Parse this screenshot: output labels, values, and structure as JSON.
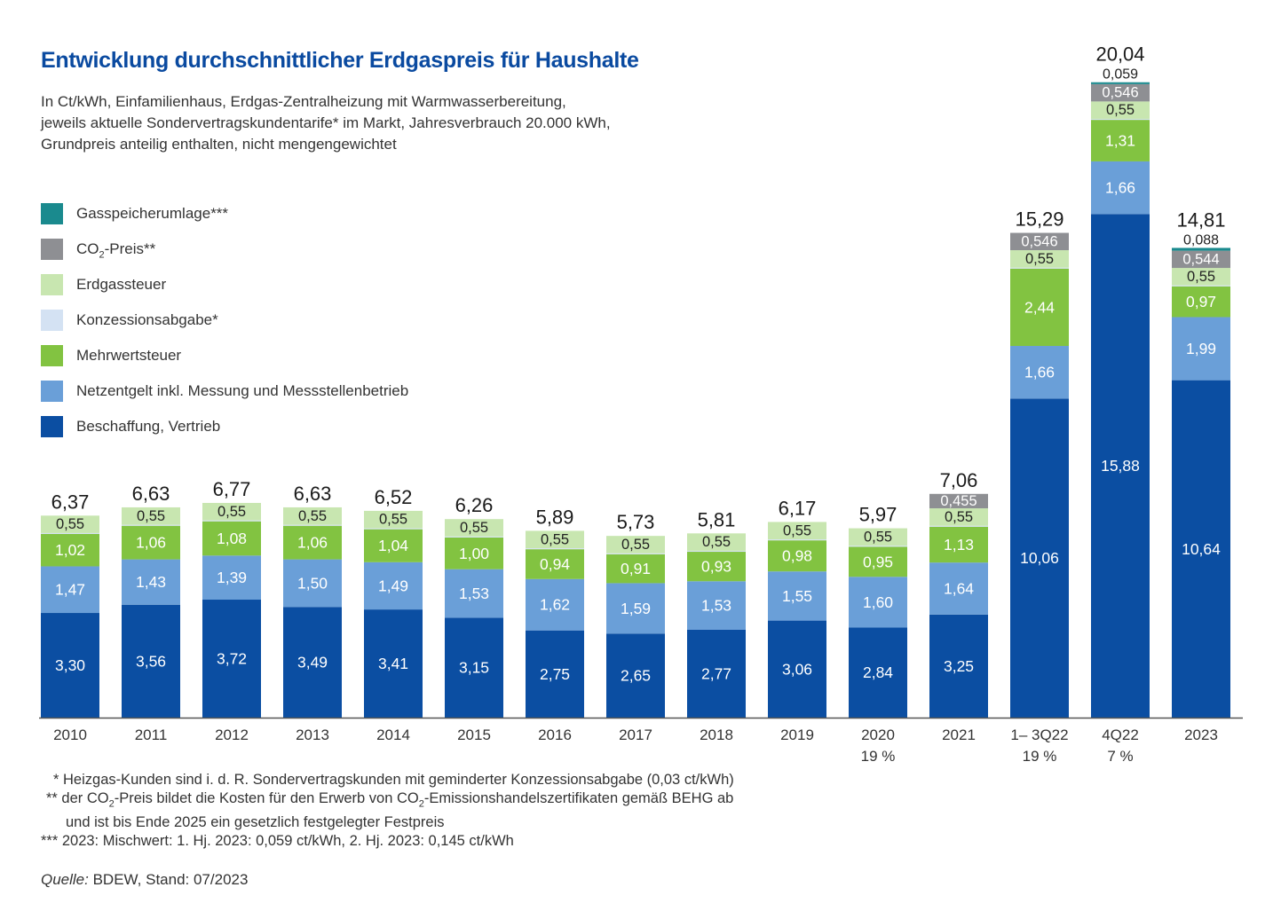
{
  "title": "Entwicklung durchschnittlicher Erdgaspreis für Haushalte",
  "subtitle_lines": [
    "In Ct/kWh, Einfamilienhaus, Erdgas-Zentralheizung mit Warmwasserbereitung,",
    "jeweils aktuelle Sondervertragskundentarife* im Markt, Jahresverbrauch 20.000 kWh,",
    "Grundpreis anteilig enthalten, nicht mengengewichtet"
  ],
  "legend": [
    {
      "label": "Gasspeicherumlage***",
      "color": "#1a8a8e"
    },
    {
      "label_pre": "CO",
      "label_sub": "2",
      "label_post": "-Preis**",
      "color": "#8e8f93"
    },
    {
      "label": "Erdgassteuer",
      "color": "#c8e6b0"
    },
    {
      "label": "Konzessionsabgabe*",
      "color": "#d4e2f3"
    },
    {
      "label": "Mehrwertsteuer",
      "color": "#82c341"
    },
    {
      "label": "Netzentgelt inkl. Messung und Messstellenbetrieb",
      "color": "#6a9fd8"
    },
    {
      "label": "Beschaffung, Vertrieb",
      "color": "#0b4ea2"
    }
  ],
  "chart_data": {
    "type": "bar",
    "stacked": true,
    "unit": "Ct/kWh",
    "categories": [
      "2010",
      "2011",
      "2012",
      "2013",
      "2014",
      "2015",
      "2016",
      "2017",
      "2018",
      "2019",
      "2020",
      "2021",
      "1– 3Q22",
      "4Q22",
      "2023"
    ],
    "category_sublabels": [
      "",
      "",
      "",
      "",
      "",
      "",
      "",
      "",
      "",
      "",
      "19 %",
      "",
      "19 %",
      "7 %",
      ""
    ],
    "totals": [
      "6,37",
      "6,63",
      "6,77",
      "6,63",
      "6,52",
      "6,26",
      "5,89",
      "5,73",
      "5,81",
      "6,17",
      "5,97",
      "7,06",
      "15,29",
      "20,04",
      "14,81"
    ],
    "series": [
      {
        "name": "Beschaffung, Vertrieb",
        "color": "#0b4ea2",
        "label_color": "#ffffff",
        "values": [
          3.3,
          3.56,
          3.72,
          3.49,
          3.41,
          3.15,
          2.75,
          2.65,
          2.77,
          3.06,
          2.84,
          3.25,
          10.06,
          15.88,
          10.64
        ],
        "labels": [
          "3,30",
          "3,56",
          "3,72",
          "3,49",
          "3,41",
          "3,15",
          "2,75",
          "2,65",
          "2,77",
          "3,06",
          "2,84",
          "3,25",
          "10,06",
          "15,88",
          "10,64"
        ]
      },
      {
        "name": "Netzentgelt inkl. Messung und Messstellenbetrieb",
        "color": "#6a9fd8",
        "label_color": "#ffffff",
        "values": [
          1.47,
          1.43,
          1.39,
          1.5,
          1.49,
          1.53,
          1.62,
          1.59,
          1.53,
          1.55,
          1.6,
          1.64,
          1.66,
          1.66,
          1.99
        ],
        "labels": [
          "1,47",
          "1,43",
          "1,39",
          "1,50",
          "1,49",
          "1,53",
          "1,62",
          "1,59",
          "1,53",
          "1,55",
          "1,60",
          "1,64",
          "1,66",
          "1,66",
          "1,99"
        ]
      },
      {
        "name": "Mehrwertsteuer",
        "color": "#82c341",
        "label_color": "#ffffff",
        "values": [
          1.02,
          1.06,
          1.08,
          1.06,
          1.04,
          1.0,
          0.94,
          0.91,
          0.93,
          0.98,
          0.95,
          1.13,
          2.44,
          1.31,
          0.97
        ],
        "labels": [
          "1,02",
          "1,06",
          "1,08",
          "1,06",
          "1,04",
          "1,00",
          "0,94",
          "0,91",
          "0,93",
          "0,98",
          "0,95",
          "1,13",
          "2,44",
          "1,31",
          "0,97"
        ]
      },
      {
        "name": "Konzessionsabgabe*",
        "color": "#d4e2f3",
        "label_color": "#222222",
        "values": [
          0.03,
          0.03,
          0.03,
          0.03,
          0.03,
          0.03,
          0.03,
          0.03,
          0.03,
          0.03,
          0.03,
          0.03,
          0.03,
          0.03,
          0.03
        ],
        "labels": [
          "",
          "",
          "",
          "",
          "",
          "",
          "",
          "",
          "",
          "",
          "",
          "",
          "",
          "",
          ""
        ]
      },
      {
        "name": "Erdgassteuer",
        "color": "#c8e6b0",
        "label_color": "#222222",
        "values": [
          0.55,
          0.55,
          0.55,
          0.55,
          0.55,
          0.55,
          0.55,
          0.55,
          0.55,
          0.55,
          0.55,
          0.55,
          0.55,
          0.55,
          0.55
        ],
        "labels": [
          "0,55",
          "0,55",
          "0,55",
          "0,55",
          "0,55",
          "0,55",
          "0,55",
          "0,55",
          "0,55",
          "0,55",
          "0,55",
          "0,55",
          "0,55",
          "0,55",
          "0,55"
        ]
      },
      {
        "name": "CO2-Preis**",
        "color": "#8e8f93",
        "label_color": "#ffffff",
        "values": [
          0,
          0,
          0,
          0,
          0,
          0,
          0,
          0,
          0,
          0,
          0,
          0.455,
          0.546,
          0.546,
          0.544
        ],
        "labels": [
          "",
          "",
          "",
          "",
          "",
          "",
          "",
          "",
          "",
          "",
          "",
          "0,455",
          "0,546",
          "0,546",
          "0,544"
        ]
      },
      {
        "name": "Gasspeicherumlage***",
        "color": "#1a8a8e",
        "label_color": "#222222",
        "values": [
          0,
          0,
          0,
          0,
          0,
          0,
          0,
          0,
          0,
          0,
          0,
          0,
          0,
          0.059,
          0.088
        ],
        "labels": [
          "",
          "",
          "",
          "",
          "",
          "",
          "",
          "",
          "",
          "",
          "",
          "",
          "",
          "0,059",
          "0,088"
        ]
      }
    ]
  },
  "footnotes": {
    "fn1": "* Heizgas-Kunden sind i. d. R. Sondervertragskunden mit geminderter Konzessionsabgabe (0,03 ct/kWh)",
    "fn2_a": "** der CO",
    "fn2_sub1": "2",
    "fn2_b": "-Preis bildet die Kosten für den Erwerb von CO",
    "fn2_sub2": "2",
    "fn2_c": "-Emissionshandelszertifikaten gemäß BEHG ab",
    "fn2_line2": "und ist bis Ende 2025 ein gesetzlich festgelegter Festpreis",
    "fn3": "*** 2023: Mischwert: 1. Hj. 2023: 0,059 ct/kWh, 2. Hj. 2023: 0,145 ct/kWh"
  },
  "source": {
    "label": "Quelle:",
    "text": " BDEW, Stand: 07/2023"
  }
}
